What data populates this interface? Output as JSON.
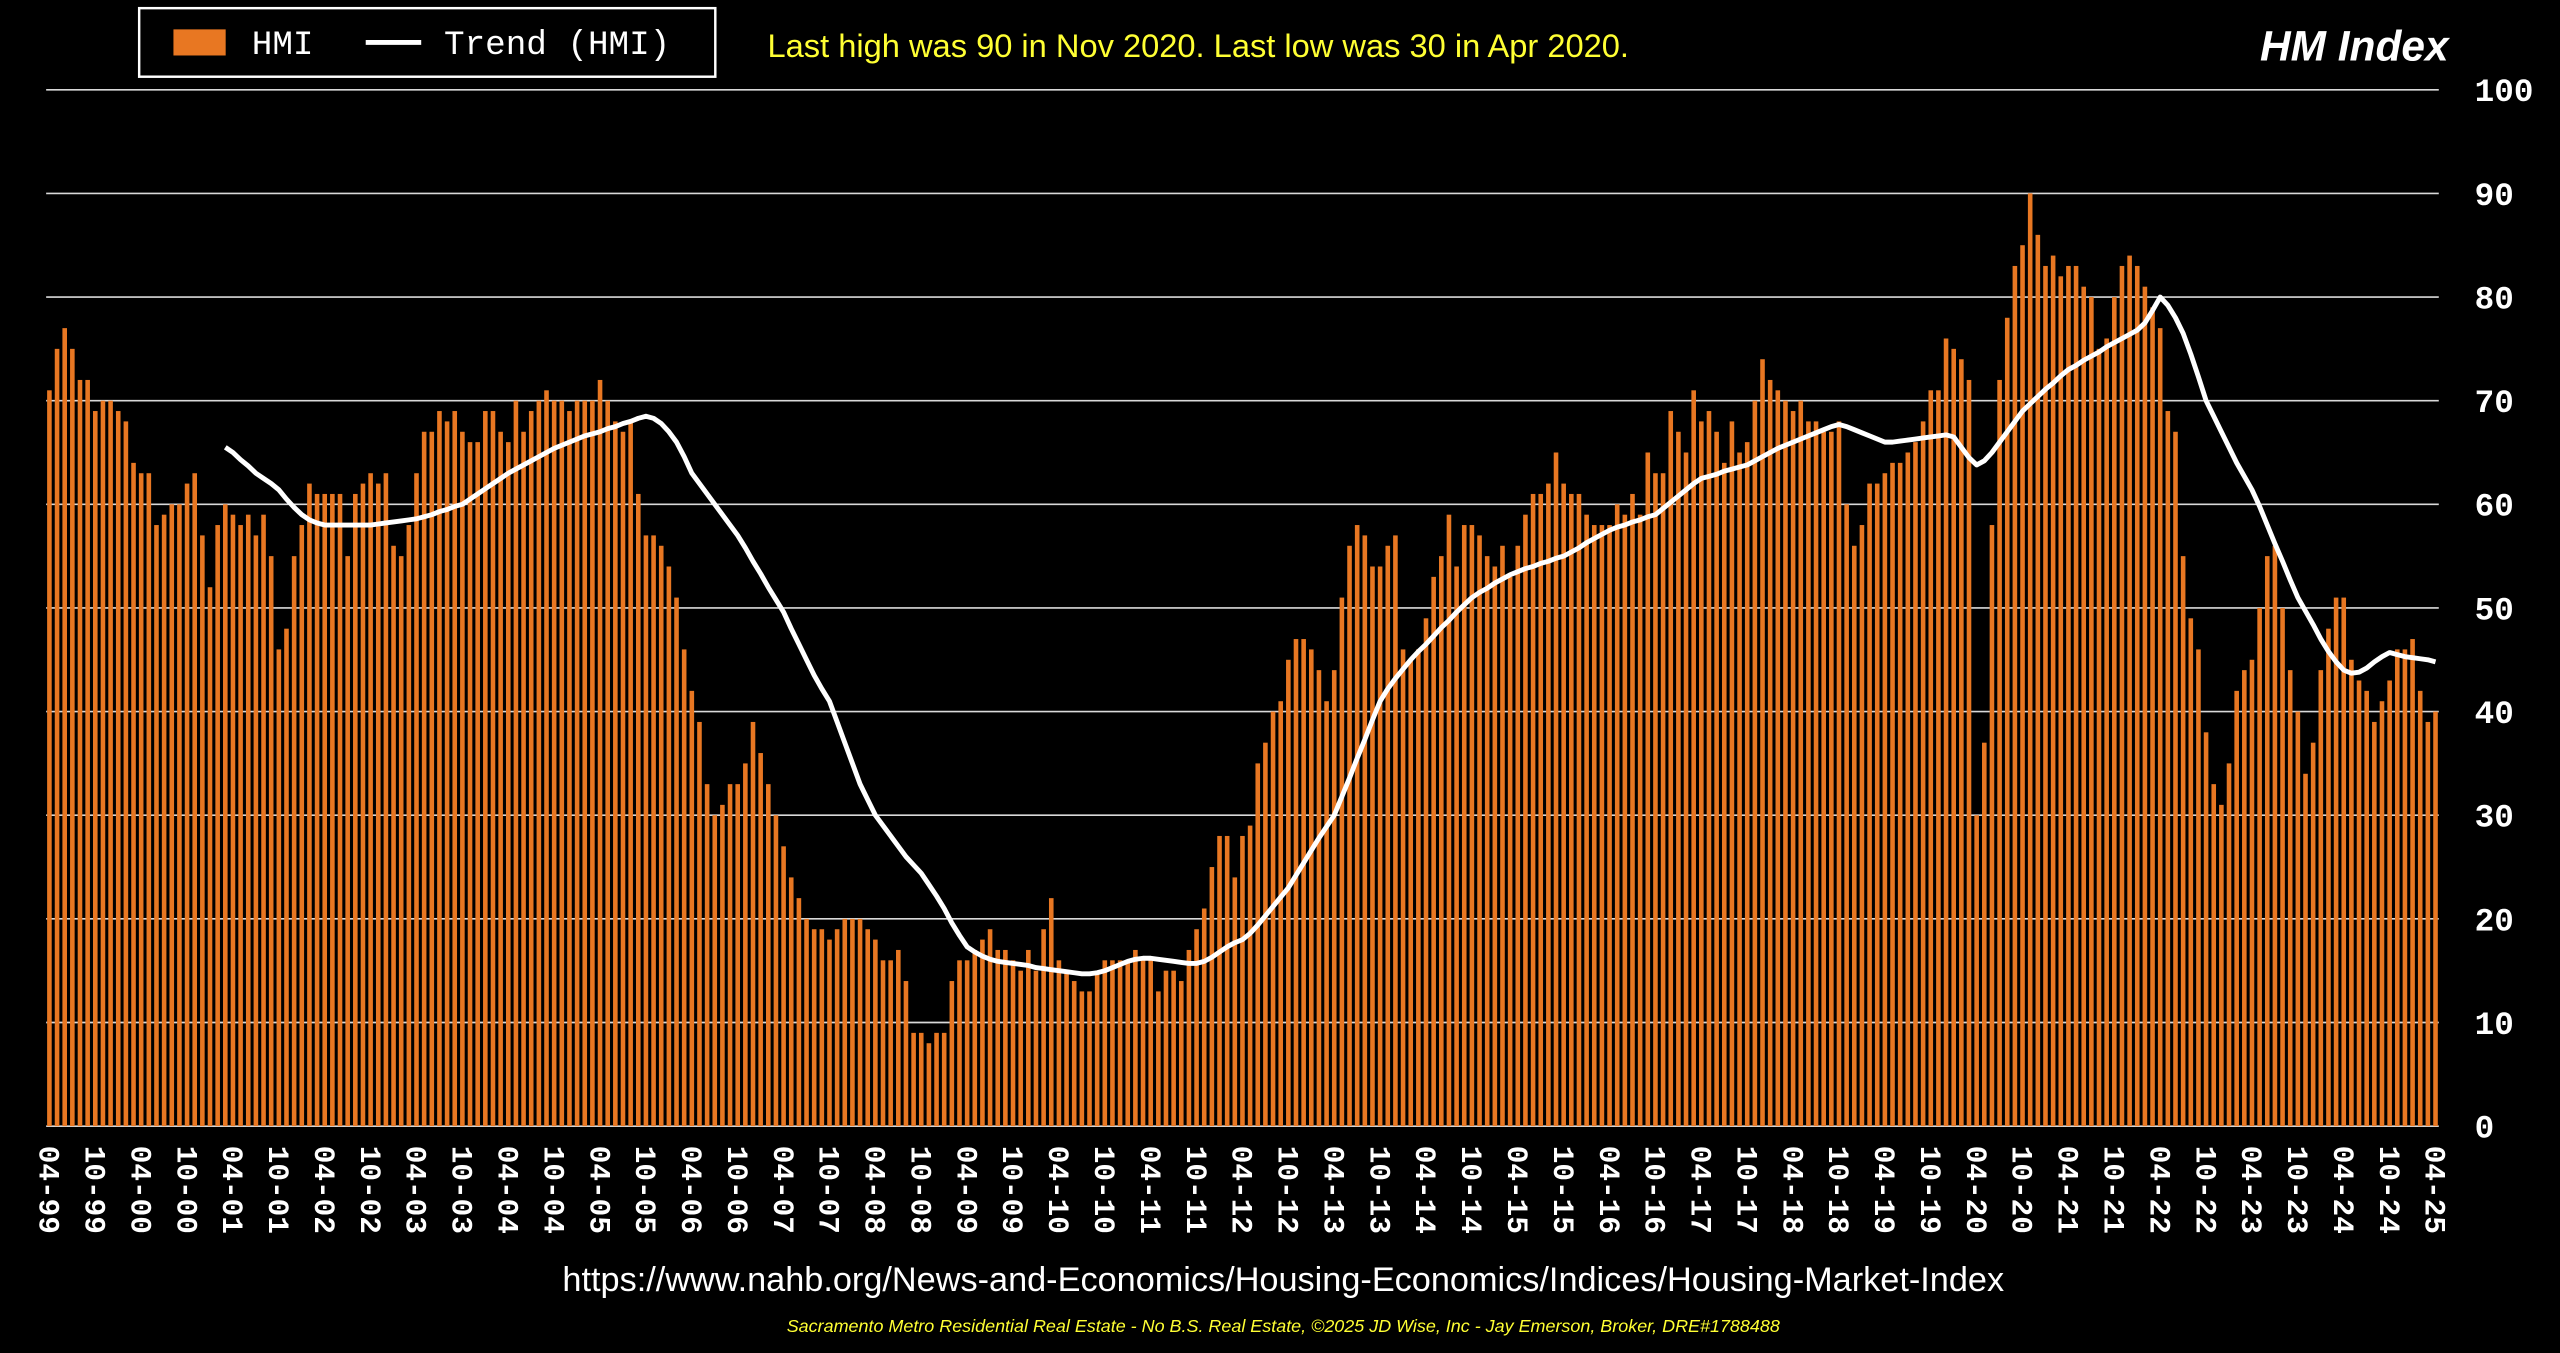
{
  "chart_data": {
    "type": "bar",
    "title": "HM Index",
    "annotation": "Last high was 90 in Nov 2020.  Last low was 30 in Apr 2020.",
    "source": "https://www.nahb.org/News-and-Economics/Housing-Economics/Indices/Housing-Market-Index",
    "footer": "Sacramento Metro Residential Real Estate - No B.S. Real Estate, ©2025 JD Wise, Inc - Jay Emerson, Broker, DRE#1788488",
    "ylim": [
      0,
      100
    ],
    "yticks": [
      0,
      10,
      20,
      30,
      40,
      50,
      60,
      70,
      80,
      90,
      100
    ],
    "yaxis_position": "right",
    "grid": true,
    "categories": [
      "04-99",
      null,
      null,
      null,
      null,
      null,
      "10-99",
      null,
      null,
      null,
      null,
      null,
      "04-00",
      null,
      null,
      null,
      null,
      null,
      "10-00",
      null,
      null,
      null,
      null,
      null,
      "04-01",
      null,
      null,
      null,
      null,
      null,
      "10-01",
      null,
      null,
      null,
      null,
      null,
      "04-02",
      null,
      null,
      null,
      null,
      null,
      "10-02",
      null,
      null,
      null,
      null,
      null,
      "04-03",
      null,
      null,
      null,
      null,
      null,
      "10-03",
      null,
      null,
      null,
      null,
      null,
      "04-04",
      null,
      null,
      null,
      null,
      null,
      "10-04",
      null,
      null,
      null,
      null,
      null,
      "04-05",
      null,
      null,
      null,
      null,
      null,
      "10-05",
      null,
      null,
      null,
      null,
      null,
      "04-06",
      null,
      null,
      null,
      null,
      null,
      "10-06",
      null,
      null,
      null,
      null,
      null,
      "04-07",
      null,
      null,
      null,
      null,
      null,
      "10-07",
      null,
      null,
      null,
      null,
      null,
      "04-08",
      null,
      null,
      null,
      null,
      null,
      "10-08",
      null,
      null,
      null,
      null,
      null,
      "04-09",
      null,
      null,
      null,
      null,
      null,
      "10-09",
      null,
      null,
      null,
      null,
      null,
      "04-10",
      null,
      null,
      null,
      null,
      null,
      "10-10",
      null,
      null,
      null,
      null,
      null,
      "04-11",
      null,
      null,
      null,
      null,
      null,
      "10-11",
      null,
      null,
      null,
      null,
      null,
      "04-12",
      null,
      null,
      null,
      null,
      null,
      "10-12",
      null,
      null,
      null,
      null,
      null,
      "04-13",
      null,
      null,
      null,
      null,
      null,
      "10-13",
      null,
      null,
      null,
      null,
      null,
      "04-14",
      null,
      null,
      null,
      null,
      null,
      "10-14",
      null,
      null,
      null,
      null,
      null,
      "04-15",
      null,
      null,
      null,
      null,
      null,
      "10-15",
      null,
      null,
      null,
      null,
      null,
      "04-16",
      null,
      null,
      null,
      null,
      null,
      "10-16",
      null,
      null,
      null,
      null,
      null,
      "04-17",
      null,
      null,
      null,
      null,
      null,
      "10-17",
      null,
      null,
      null,
      null,
      null,
      "04-18",
      null,
      null,
      null,
      null,
      null,
      "10-18",
      null,
      null,
      null,
      null,
      null,
      "04-19",
      null,
      null,
      null,
      null,
      null,
      "10-19",
      null,
      null,
      null,
      null,
      null,
      "04-20",
      null,
      null,
      null,
      null,
      null,
      "10-20",
      null,
      null,
      null,
      null,
      null,
      "04-21",
      null,
      null,
      null,
      null,
      null,
      "10-21",
      null,
      null,
      null,
      null,
      null,
      "04-22",
      null,
      null,
      null,
      null,
      null,
      "10-22",
      null,
      null,
      null,
      null,
      null,
      "04-23",
      null,
      null,
      null,
      null,
      null,
      "10-23",
      null,
      null,
      null,
      null,
      null,
      "04-24",
      null,
      null,
      null,
      null,
      null,
      "10-24",
      null,
      null,
      null,
      null,
      null,
      "04-25"
    ],
    "series": [
      {
        "name": "HMI",
        "type": "bar",
        "color": "#e87722",
        "values": [
          71,
          75,
          77,
          75,
          72,
          72,
          69,
          70,
          70,
          69,
          68,
          64,
          63,
          63,
          58,
          59,
          60,
          60,
          62,
          63,
          57,
          52,
          58,
          60,
          59,
          58,
          59,
          57,
          59,
          55,
          46,
          48,
          55,
          58,
          62,
          61,
          61,
          61,
          61,
          55,
          61,
          62,
          63,
          62,
          63,
          56,
          55,
          58,
          63,
          67,
          67,
          69,
          68,
          69,
          67,
          66,
          66,
          69,
          69,
          67,
          66,
          70,
          67,
          69,
          70,
          71,
          70,
          70,
          69,
          70,
          70,
          70,
          72,
          70,
          68,
          67,
          68,
          61,
          57,
          57,
          56,
          54,
          51,
          46,
          42,
          39,
          33,
          30,
          31,
          33,
          33,
          35,
          39,
          36,
          33,
          30,
          27,
          24,
          22,
          20,
          19,
          19,
          18,
          19,
          20,
          20,
          20,
          19,
          18,
          16,
          16,
          17,
          14,
          9,
          9,
          8,
          9,
          9,
          14,
          16,
          16,
          17,
          18,
          19,
          17,
          17,
          16,
          15,
          17,
          15,
          19,
          22,
          16,
          15,
          14,
          13,
          13,
          15,
          16,
          16,
          16,
          16,
          17,
          16,
          16,
          13,
          15,
          15,
          14,
          17,
          19,
          21,
          25,
          28,
          28,
          24,
          28,
          29,
          35,
          37,
          40,
          41,
          45,
          47,
          47,
          46,
          44,
          41,
          44,
          51,
          56,
          58,
          57,
          54,
          54,
          56,
          57,
          46,
          45,
          46,
          49,
          53,
          55,
          59,
          54,
          58,
          58,
          57,
          55,
          54,
          56,
          53,
          56,
          59,
          61,
          61,
          62,
          65,
          62,
          61,
          61,
          59,
          58,
          58,
          58,
          60,
          59,
          61,
          59,
          65,
          63,
          63,
          69,
          67,
          65,
          71,
          68,
          69,
          67,
          64,
          68,
          65,
          66,
          70,
          74,
          72,
          71,
          70,
          69,
          70,
          68,
          68,
          67,
          67,
          68,
          60,
          56,
          58,
          62,
          62,
          63,
          64,
          64,
          65,
          66,
          68,
          71,
          71,
          76,
          75,
          74,
          72,
          30,
          37,
          58,
          72,
          78,
          83,
          85,
          90,
          86,
          83,
          84,
          82,
          83,
          83,
          81,
          80,
          75,
          76,
          80,
          83,
          84,
          83,
          81,
          79,
          77,
          69,
          67,
          55,
          49,
          46,
          38,
          33,
          31,
          35,
          42,
          44,
          45,
          50,
          55,
          56,
          50,
          44,
          40,
          34,
          37,
          44,
          48,
          51,
          51,
          45,
          43,
          42,
          39,
          41,
          43,
          46,
          46,
          47,
          42,
          39,
          40
        ]
      },
      {
        "name": "Trend (HMI)",
        "type": "line",
        "color": "#ffffff",
        "values": [
          null,
          null,
          null,
          null,
          null,
          null,
          null,
          null,
          null,
          null,
          null,
          null,
          null,
          null,
          null,
          null,
          null,
          null,
          null,
          null,
          null,
          null,
          null,
          65.5,
          65,
          64.3,
          63.7,
          63,
          62.5,
          62,
          61.4,
          60.5,
          59.7,
          59,
          58.5,
          58.2,
          58,
          58,
          58,
          58,
          58,
          58,
          58,
          58.1,
          58.2,
          58.3,
          58.4,
          58.5,
          58.6,
          58.8,
          59,
          59.3,
          59.5,
          59.8,
          60,
          60.5,
          61,
          61.5,
          62,
          62.5,
          63,
          63.4,
          63.8,
          64.2,
          64.6,
          65,
          65.4,
          65.7,
          66,
          66.3,
          66.6,
          66.8,
          67,
          67.3,
          67.5,
          67.8,
          68,
          68.3,
          68.5,
          68.3,
          67.8,
          67,
          66,
          64.6,
          63,
          62,
          61,
          60,
          59,
          58,
          57,
          55.8,
          54.5,
          53.3,
          52,
          50.8,
          49.6,
          48,
          46.5,
          45,
          43.5,
          42.2,
          41,
          39,
          37,
          35,
          33,
          31.5,
          30,
          29,
          28,
          27,
          26,
          25.2,
          24.4,
          23.3,
          22.2,
          21,
          19.6,
          18.4,
          17.3,
          16.8,
          16.4,
          16.1,
          15.9,
          15.8,
          15.7,
          15.6,
          15.5,
          15.3,
          15.2,
          15.1,
          15,
          14.9,
          14.8,
          14.7,
          14.7,
          14.8,
          15,
          15.3,
          15.6,
          15.9,
          16.1,
          16.2,
          16.2,
          16.1,
          16,
          15.9,
          15.8,
          15.7,
          15.7,
          15.9,
          16.3,
          16.8,
          17.3,
          17.7,
          18,
          18.6,
          19.4,
          20.3,
          21.2,
          22.1,
          23,
          24.2,
          25.4,
          26.6,
          27.8,
          28.9,
          30,
          31.8,
          33.6,
          35.5,
          37.3,
          39.2,
          41,
          42.2,
          43.2,
          44.1,
          45,
          45.8,
          46.5,
          47.3,
          48.1,
          48.8,
          49.6,
          50.3,
          51,
          51.5,
          51.9,
          52.4,
          52.8,
          53.2,
          53.5,
          53.8,
          54,
          54.3,
          54.5,
          54.8,
          55,
          55.4,
          55.8,
          56.3,
          56.7,
          57.1,
          57.5,
          57.8,
          58,
          58.3,
          58.5,
          58.8,
          59,
          59.6,
          60.2,
          60.8,
          61.4,
          62,
          62.5,
          62.7,
          62.9,
          63.2,
          63.4,
          63.6,
          63.8,
          64.2,
          64.6,
          65,
          65.4,
          65.7,
          66,
          66.3,
          66.6,
          66.9,
          67.2,
          67.5,
          67.7,
          67.5,
          67.2,
          66.9,
          66.6,
          66.3,
          66,
          66,
          66.1,
          66.2,
          66.3,
          66.4,
          66.5,
          66.6,
          66.7,
          66.5,
          65.5,
          64.5,
          63.8,
          64.2,
          65,
          66,
          67,
          68,
          69,
          69.7,
          70.4,
          71.1,
          71.7,
          72.4,
          73,
          73.4,
          73.9,
          74.3,
          74.7,
          75.2,
          75.6,
          76,
          76.4,
          76.8,
          77.5,
          78.7,
          80,
          79.2,
          78,
          76.5,
          74.5,
          72.3,
          70,
          68.5,
          67,
          65.5,
          64,
          62.7,
          61.4,
          59.8,
          58,
          56.2,
          54.5,
          52.7,
          51,
          49.7,
          48.4,
          47,
          45.8,
          44.8,
          44,
          43.7,
          43.8,
          44.2,
          44.8,
          45.3,
          45.7,
          45.5,
          45.3,
          45.2,
          45.1,
          45,
          44.8
        ]
      }
    ]
  }
}
